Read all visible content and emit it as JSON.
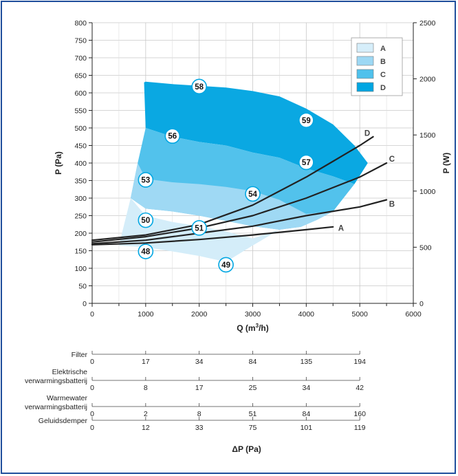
{
  "chart_data": {
    "type": "line",
    "xlabel": "Q (m",
    "xlabel_sup": "3",
    "xlabel_tail": "/h)",
    "ylabel": "P (Pa)",
    "y2label": "P (W)",
    "xlim": [
      0,
      6000
    ],
    "ylim": [
      0,
      800
    ],
    "y2lim": [
      0,
      2500
    ],
    "x_ticks": [
      "0",
      "1000",
      "2000",
      "3000",
      "4000",
      "5000",
      "6000"
    ],
    "y_ticks": [
      "0",
      "50",
      "100",
      "150",
      "200",
      "250",
      "300",
      "350",
      "400",
      "450",
      "500",
      "550",
      "600",
      "650",
      "700",
      "750",
      "800"
    ],
    "y2_ticks": [
      "0",
      "500",
      "1000",
      "1500",
      "2000",
      "2500"
    ],
    "grid": true,
    "legend_position": "top-right",
    "legend": [
      {
        "label": "A",
        "color": "#d6eefa"
      },
      {
        "label": "B",
        "color": "#9dd8f4"
      },
      {
        "label": "C",
        "color": "#4fc1ec"
      },
      {
        "label": "D",
        "color": "#00a6e2"
      }
    ],
    "regions": [
      {
        "name": "D",
        "color": "#0aa8e2",
        "points": [
          [
            970,
            630
          ],
          [
            1000,
            500
          ],
          [
            1500,
            475
          ],
          [
            2000,
            460
          ],
          [
            2500,
            450
          ],
          [
            3000,
            430
          ],
          [
            3500,
            415
          ],
          [
            4000,
            385
          ],
          [
            4500,
            362
          ],
          [
            4900,
            340
          ],
          [
            5150,
            400
          ],
          [
            4900,
            450
          ],
          [
            4500,
            510
          ],
          [
            4000,
            555
          ],
          [
            3500,
            590
          ],
          [
            3000,
            605
          ],
          [
            2500,
            615
          ],
          [
            2000,
            620
          ],
          [
            1500,
            625
          ],
          [
            1000,
            632
          ]
        ]
      },
      {
        "name": "C",
        "color": "#52c2ec",
        "points": [
          [
            1000,
            500
          ],
          [
            850,
            400
          ],
          [
            720,
            300
          ],
          [
            1000,
            270
          ],
          [
            1500,
            262
          ],
          [
            2000,
            250
          ],
          [
            2500,
            235
          ],
          [
            3000,
            220
          ],
          [
            3500,
            210
          ],
          [
            3900,
            218
          ],
          [
            4200,
            238
          ],
          [
            4500,
            262
          ],
          [
            4900,
            340
          ],
          [
            4500,
            362
          ],
          [
            4000,
            385
          ],
          [
            3500,
            415
          ],
          [
            3000,
            430
          ],
          [
            2500,
            450
          ],
          [
            2000,
            460
          ],
          [
            1500,
            475
          ]
        ]
      },
      {
        "name": "B",
        "color": "#9fd9f4",
        "points": [
          [
            850,
            400
          ],
          [
            1000,
            355
          ],
          [
            1500,
            345
          ],
          [
            2000,
            340
          ],
          [
            2500,
            332
          ],
          [
            3000,
            320
          ],
          [
            3500,
            295
          ],
          [
            4000,
            255
          ],
          [
            4500,
            262
          ],
          [
            4200,
            238
          ],
          [
            3900,
            218
          ],
          [
            3500,
            210
          ],
          [
            3000,
            220
          ],
          [
            2500,
            235
          ],
          [
            2000,
            250
          ],
          [
            1500,
            262
          ],
          [
            1000,
            270
          ],
          [
            720,
            300
          ]
        ]
      },
      {
        "name": "A",
        "color": "#d4edf9",
        "points": [
          [
            720,
            300
          ],
          [
            1000,
            250
          ],
          [
            1500,
            232
          ],
          [
            2000,
            220
          ],
          [
            2500,
            205
          ],
          [
            3000,
            185
          ],
          [
            3500,
            210
          ],
          [
            3000,
            165
          ],
          [
            2500,
            118
          ],
          [
            2000,
            135
          ],
          [
            1500,
            148
          ],
          [
            1000,
            160
          ],
          [
            500,
            165
          ]
        ]
      }
    ],
    "series": [
      {
        "name": "A",
        "label_x": 4650,
        "label_y": 215,
        "x": [
          0,
          1000,
          2000,
          3000,
          4000,
          4500
        ],
        "y": [
          167,
          172,
          182,
          195,
          210,
          218
        ]
      },
      {
        "name": "B",
        "label_x": 5600,
        "label_y": 283,
        "x": [
          0,
          1000,
          2000,
          3000,
          4000,
          5000,
          5500
        ],
        "y": [
          170,
          180,
          200,
          220,
          250,
          275,
          295
        ]
      },
      {
        "name": "C",
        "label_x": 5600,
        "label_y": 412,
        "x": [
          0,
          1000,
          2000,
          3000,
          4000,
          5000,
          5500
        ],
        "y": [
          175,
          190,
          215,
          250,
          300,
          360,
          400
        ]
      },
      {
        "name": "D",
        "label_x": 5140,
        "label_y": 485,
        "x": [
          0,
          1000,
          2000,
          3000,
          4000,
          4500,
          5000,
          5250
        ],
        "y": [
          180,
          195,
          225,
          280,
          360,
          405,
          450,
          475
        ]
      }
    ],
    "markers": [
      {
        "label": "58",
        "x": 2000,
        "y": 618
      },
      {
        "label": "59",
        "x": 4000,
        "y": 522
      },
      {
        "label": "56",
        "x": 1500,
        "y": 477
      },
      {
        "label": "57",
        "x": 4000,
        "y": 402
      },
      {
        "label": "53",
        "x": 1000,
        "y": 352
      },
      {
        "label": "54",
        "x": 3000,
        "y": 312
      },
      {
        "label": "50",
        "x": 1000,
        "y": 237
      },
      {
        "label": "51",
        "x": 2000,
        "y": 215
      },
      {
        "label": "48",
        "x": 1000,
        "y": 148
      },
      {
        "label": "49",
        "x": 2500,
        "y": 110
      }
    ],
    "pressure_table": {
      "title": "ΔP (Pa)",
      "columns_x": [
        0,
        1000,
        2000,
        3000,
        4000,
        5000
      ],
      "rows": [
        {
          "label_lines": [
            "Filter"
          ],
          "values": [
            "0",
            "17",
            "34",
            "84",
            "135",
            "194"
          ]
        },
        {
          "label_lines": [
            "Elektrische",
            "verwarmingsbatterij"
          ],
          "values": [
            "0",
            "8",
            "17",
            "25",
            "34",
            "42"
          ]
        },
        {
          "label_lines": [
            "Warmewater",
            "verwarmingsbatterij"
          ],
          "values": [
            "0",
            "2",
            "8",
            "51",
            "84",
            "160"
          ]
        },
        {
          "label_lines": [
            "Geluidsdemper"
          ],
          "values": [
            "0",
            "12",
            "33",
            "75",
            "101",
            "119"
          ]
        }
      ]
    }
  }
}
